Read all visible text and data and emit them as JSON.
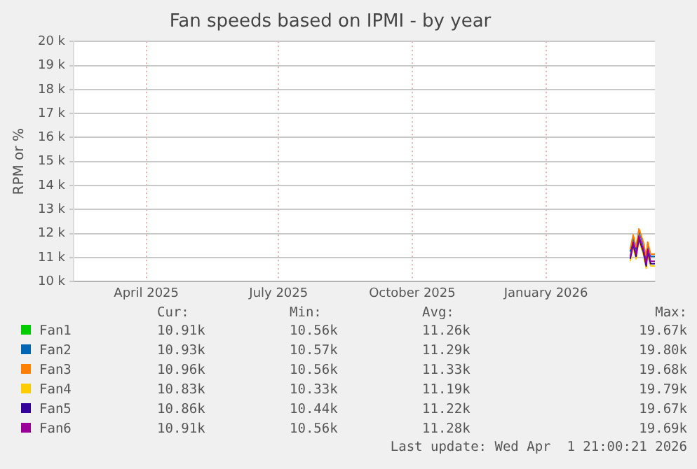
{
  "chart_data": {
    "type": "line",
    "title": "Fan speeds based on IPMI - by year",
    "ylabel": "RPM or %",
    "xlim": [
      "2025-02-25",
      "2026-04-01"
    ],
    "xticks": [
      {
        "value": "2025-04-16",
        "label": "April 2025"
      },
      {
        "value": "2025-07-16",
        "label": "July 2025"
      },
      {
        "value": "2025-10-16",
        "label": "October 2025"
      },
      {
        "value": "2026-01-16",
        "label": "January 2026"
      }
    ],
    "ylim": [
      10000,
      20000
    ],
    "yticks": [
      {
        "value": 10000,
        "label": "10 k"
      },
      {
        "value": 11000,
        "label": "11 k"
      },
      {
        "value": 12000,
        "label": "12 k"
      },
      {
        "value": 13000,
        "label": "13 k"
      },
      {
        "value": 14000,
        "label": "14 k"
      },
      {
        "value": 15000,
        "label": "15 k"
      },
      {
        "value": 16000,
        "label": "16 k"
      },
      {
        "value": 17000,
        "label": "17 k"
      },
      {
        "value": 18000,
        "label": "18 k"
      },
      {
        "value": 19000,
        "label": "19 k"
      },
      {
        "value": 20000,
        "label": "20 k"
      }
    ],
    "x": [
      "2026-03-15",
      "2026-03-17",
      "2026-03-19",
      "2026-03-21",
      "2026-03-24",
      "2026-03-26",
      "2026-03-27",
      "2026-03-29",
      "2026-04-01"
    ],
    "series": [
      {
        "name": "Fan1",
        "color": "#00cc00",
        "values": [
          null,
          null,
          null,
          null,
          null,
          null,
          null,
          null,
          null
        ]
      },
      {
        "name": "Fan2",
        "color": "#0066b3",
        "values": [
          11250,
          11850,
          11350,
          12100,
          11550,
          10950,
          11550,
          11050,
          11050
        ]
      },
      {
        "name": "Fan3",
        "color": "#ff8000",
        "values": [
          11350,
          11950,
          11450,
          12200,
          11650,
          11050,
          11650,
          11150,
          11150
        ]
      },
      {
        "name": "Fan4",
        "color": "#ffcc00",
        "values": [
          10850,
          11450,
          10950,
          11700,
          11150,
          10550,
          11150,
          10650,
          10650
        ]
      },
      {
        "name": "Fan5",
        "color": "#330099",
        "values": [
          10950,
          11550,
          11050,
          11800,
          11250,
          10650,
          11250,
          10750,
          10750
        ]
      },
      {
        "name": "Fan6",
        "color": "#990099",
        "values": [
          11050,
          11650,
          11150,
          11900,
          11350,
          10750,
          11350,
          10850,
          10850
        ]
      }
    ],
    "grid": true,
    "legend": "bottom",
    "marker": "none",
    "line_style": "solid",
    "annotations": [
      "Cur:",
      "Min:",
      "Avg:",
      "Max:",
      "10.91k",
      "10.56k",
      "11.26k",
      "19.67k",
      "10.93k",
      "10.57k",
      "11.29k",
      "19.80k",
      "10.96k",
      "10.56k",
      "11.33k",
      "19.68k",
      "10.83k",
      "10.33k",
      "11.19k",
      "19.79k",
      "10.86k",
      "10.44k",
      "11.22k",
      "19.67k",
      "10.91k",
      "10.56k",
      "11.28k",
      "19.69k",
      "Last update: Wed Apr  1 21:00:21 2026"
    ]
  }
}
